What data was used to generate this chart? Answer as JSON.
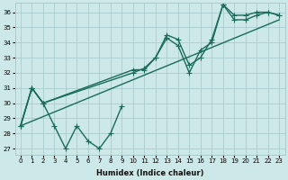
{
  "xlabel": "Humidex (Indice chaleur)",
  "bg_color": "#cce8e8",
  "grid_color": "#aacccc",
  "line_color": "#1a6b5a",
  "xlim": [
    -0.5,
    23.5
  ],
  "ylim": [
    26.6,
    36.6
  ],
  "xticks": [
    0,
    1,
    2,
    3,
    4,
    5,
    6,
    7,
    8,
    9,
    10,
    11,
    12,
    13,
    14,
    15,
    16,
    17,
    18,
    19,
    20,
    21,
    22,
    23
  ],
  "yticks": [
    27,
    28,
    29,
    30,
    31,
    32,
    33,
    34,
    35,
    36
  ],
  "series1_x": [
    0,
    1,
    2,
    3,
    4,
    5,
    6,
    7,
    8,
    9
  ],
  "series1_y": [
    28.5,
    31.0,
    30.0,
    28.5,
    27.0,
    28.5,
    27.5,
    27.0,
    28.0,
    29.8
  ],
  "series2_x": [
    0,
    1,
    2,
    10,
    11,
    12,
    13,
    14,
    15,
    16,
    17,
    18,
    19,
    20,
    21,
    22,
    23
  ],
  "series2_y": [
    28.5,
    31.0,
    30.0,
    32.2,
    32.2,
    33.0,
    34.5,
    34.2,
    32.5,
    33.0,
    34.2,
    36.5,
    35.8,
    35.8,
    36.0,
    36.0,
    35.8
  ],
  "series3_x": [
    0,
    1,
    2,
    10,
    11,
    12,
    13,
    14,
    15,
    16,
    17,
    18,
    19,
    20,
    21,
    22,
    23
  ],
  "series3_y": [
    28.5,
    31.0,
    30.0,
    32.0,
    32.3,
    33.0,
    34.3,
    33.8,
    32.0,
    33.5,
    34.0,
    36.5,
    35.5,
    35.5,
    35.8,
    36.0,
    35.8
  ],
  "series4_x": [
    0,
    23
  ],
  "series4_y": [
    28.5,
    35.5
  ]
}
